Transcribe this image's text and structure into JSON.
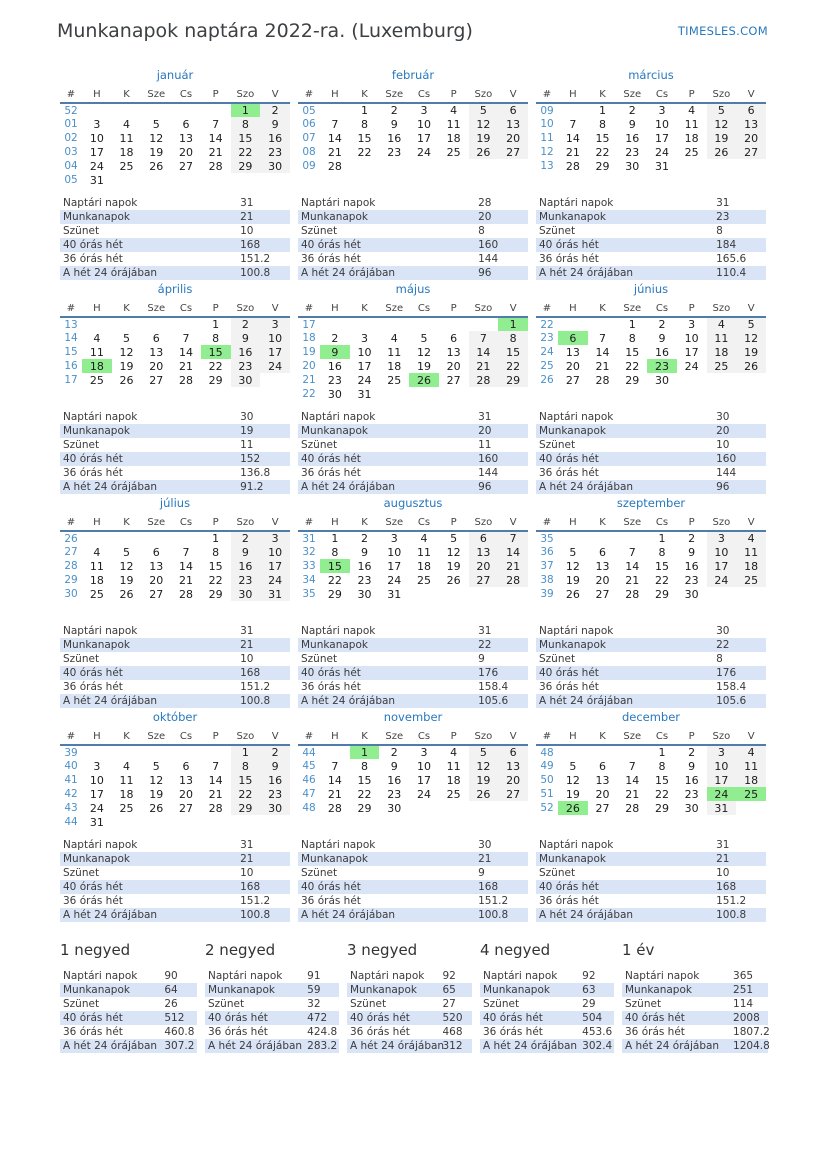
{
  "header": {
    "title": "Munkanapok naptára 2022-ra. (Luxemburg)",
    "brand": "TIMESLES.COM"
  },
  "weekday_headers": [
    "#",
    "H",
    "K",
    "Sze",
    "Cs",
    "P",
    "Szo",
    "V"
  ],
  "stat_labels": [
    "Naptári napok",
    "Munkanapok",
    "Szünet",
    "40 órás hét",
    "36 órás hét",
    "A hét 24 órájában"
  ],
  "colors": {
    "accent_blue": "#2878be",
    "week_number_blue": "#4a90c9",
    "holiday_green": "#90ee90",
    "weekend_gray": "#f2f2f2",
    "stats_row_blue": "#d9e4f7",
    "header_rule_blue": "#4f7cab"
  },
  "months": [
    {
      "name": "január",
      "holidays": [
        "1"
      ],
      "weeks": [
        {
          "num": "52",
          "days": [
            "",
            "",
            "",
            "",
            "",
            "1",
            "2"
          ]
        },
        {
          "num": "01",
          "days": [
            "3",
            "4",
            "5",
            "6",
            "7",
            "8",
            "9"
          ]
        },
        {
          "num": "02",
          "days": [
            "10",
            "11",
            "12",
            "13",
            "14",
            "15",
            "16"
          ]
        },
        {
          "num": "03",
          "days": [
            "17",
            "18",
            "19",
            "20",
            "21",
            "22",
            "23"
          ]
        },
        {
          "num": "04",
          "days": [
            "24",
            "25",
            "26",
            "27",
            "28",
            "29",
            "30"
          ]
        },
        {
          "num": "05",
          "days": [
            "31",
            "",
            "",
            "",
            "",
            "",
            ""
          ]
        }
      ],
      "stats": [
        "31",
        "21",
        "10",
        "168",
        "151.2",
        "100.8"
      ]
    },
    {
      "name": "február",
      "holidays": [],
      "weeks": [
        {
          "num": "05",
          "days": [
            "",
            "1",
            "2",
            "3",
            "4",
            "5",
            "6"
          ]
        },
        {
          "num": "06",
          "days": [
            "7",
            "8",
            "9",
            "10",
            "11",
            "12",
            "13"
          ]
        },
        {
          "num": "07",
          "days": [
            "14",
            "15",
            "16",
            "17",
            "18",
            "19",
            "20"
          ]
        },
        {
          "num": "08",
          "days": [
            "21",
            "22",
            "23",
            "24",
            "25",
            "26",
            "27"
          ]
        },
        {
          "num": "09",
          "days": [
            "28",
            "",
            "",
            "",
            "",
            "",
            ""
          ]
        }
      ],
      "stats": [
        "28",
        "20",
        "8",
        "160",
        "144",
        "96"
      ]
    },
    {
      "name": "március",
      "holidays": [],
      "weeks": [
        {
          "num": "09",
          "days": [
            "",
            "1",
            "2",
            "3",
            "4",
            "5",
            "6"
          ]
        },
        {
          "num": "10",
          "days": [
            "7",
            "8",
            "9",
            "10",
            "11",
            "12",
            "13"
          ]
        },
        {
          "num": "11",
          "days": [
            "14",
            "15",
            "16",
            "17",
            "18",
            "19",
            "20"
          ]
        },
        {
          "num": "12",
          "days": [
            "21",
            "22",
            "23",
            "24",
            "25",
            "26",
            "27"
          ]
        },
        {
          "num": "13",
          "days": [
            "28",
            "29",
            "30",
            "31",
            "",
            "",
            ""
          ]
        }
      ],
      "stats": [
        "31",
        "23",
        "8",
        "184",
        "165.6",
        "110.4"
      ]
    },
    {
      "name": "április",
      "holidays": [
        "15",
        "18"
      ],
      "weeks": [
        {
          "num": "13",
          "days": [
            "",
            "",
            "",
            "",
            "1",
            "2",
            "3"
          ]
        },
        {
          "num": "14",
          "days": [
            "4",
            "5",
            "6",
            "7",
            "8",
            "9",
            "10"
          ]
        },
        {
          "num": "15",
          "days": [
            "11",
            "12",
            "13",
            "14",
            "15",
            "16",
            "17"
          ]
        },
        {
          "num": "16",
          "days": [
            "18",
            "19",
            "20",
            "21",
            "22",
            "23",
            "24"
          ]
        },
        {
          "num": "17",
          "days": [
            "25",
            "26",
            "27",
            "28",
            "29",
            "30",
            ""
          ]
        }
      ],
      "stats": [
        "30",
        "19",
        "11",
        "152",
        "136.8",
        "91.2"
      ]
    },
    {
      "name": "május",
      "holidays": [
        "1",
        "9",
        "26"
      ],
      "weeks": [
        {
          "num": "17",
          "days": [
            "",
            "",
            "",
            "",
            "",
            "",
            "1"
          ]
        },
        {
          "num": "18",
          "days": [
            "2",
            "3",
            "4",
            "5",
            "6",
            "7",
            "8"
          ]
        },
        {
          "num": "19",
          "days": [
            "9",
            "10",
            "11",
            "12",
            "13",
            "14",
            "15"
          ]
        },
        {
          "num": "20",
          "days": [
            "16",
            "17",
            "18",
            "19",
            "20",
            "21",
            "22"
          ]
        },
        {
          "num": "21",
          "days": [
            "23",
            "24",
            "25",
            "26",
            "27",
            "28",
            "29"
          ]
        },
        {
          "num": "22",
          "days": [
            "30",
            "31",
            "",
            "",
            "",
            "",
            ""
          ]
        }
      ],
      "stats": [
        "31",
        "20",
        "11",
        "160",
        "144",
        "96"
      ]
    },
    {
      "name": "június",
      "holidays": [
        "6",
        "23"
      ],
      "weeks": [
        {
          "num": "22",
          "days": [
            "",
            "",
            "1",
            "2",
            "3",
            "4",
            "5"
          ]
        },
        {
          "num": "23",
          "days": [
            "6",
            "7",
            "8",
            "9",
            "10",
            "11",
            "12"
          ]
        },
        {
          "num": "24",
          "days": [
            "13",
            "14",
            "15",
            "16",
            "17",
            "18",
            "19"
          ]
        },
        {
          "num": "25",
          "days": [
            "20",
            "21",
            "22",
            "23",
            "24",
            "25",
            "26"
          ]
        },
        {
          "num": "26",
          "days": [
            "27",
            "28",
            "29",
            "30",
            "",
            "",
            ""
          ]
        }
      ],
      "stats": [
        "30",
        "20",
        "10",
        "160",
        "144",
        "96"
      ]
    },
    {
      "name": "július",
      "holidays": [],
      "weeks": [
        {
          "num": "26",
          "days": [
            "",
            "",
            "",
            "",
            "1",
            "2",
            "3"
          ]
        },
        {
          "num": "27",
          "days": [
            "4",
            "5",
            "6",
            "7",
            "8",
            "9",
            "10"
          ]
        },
        {
          "num": "28",
          "days": [
            "11",
            "12",
            "13",
            "14",
            "15",
            "16",
            "17"
          ]
        },
        {
          "num": "29",
          "days": [
            "18",
            "19",
            "20",
            "21",
            "22",
            "23",
            "24"
          ]
        },
        {
          "num": "30",
          "days": [
            "25",
            "26",
            "27",
            "28",
            "29",
            "30",
            "31"
          ]
        }
      ],
      "stats": [
        "31",
        "21",
        "10",
        "168",
        "151.2",
        "100.8"
      ]
    },
    {
      "name": "augusztus",
      "holidays": [
        "15"
      ],
      "weeks": [
        {
          "num": "31",
          "days": [
            "1",
            "2",
            "3",
            "4",
            "5",
            "6",
            "7"
          ]
        },
        {
          "num": "32",
          "days": [
            "8",
            "9",
            "10",
            "11",
            "12",
            "13",
            "14"
          ]
        },
        {
          "num": "33",
          "days": [
            "15",
            "16",
            "17",
            "18",
            "19",
            "20",
            "21"
          ]
        },
        {
          "num": "34",
          "days": [
            "22",
            "23",
            "24",
            "25",
            "26",
            "27",
            "28"
          ]
        },
        {
          "num": "35",
          "days": [
            "29",
            "30",
            "31",
            "",
            "",
            "",
            ""
          ]
        }
      ],
      "stats": [
        "31",
        "22",
        "9",
        "176",
        "158.4",
        "105.6"
      ]
    },
    {
      "name": "szeptember",
      "holidays": [],
      "weeks": [
        {
          "num": "35",
          "days": [
            "",
            "",
            "",
            "1",
            "2",
            "3",
            "4"
          ]
        },
        {
          "num": "36",
          "days": [
            "5",
            "6",
            "7",
            "8",
            "9",
            "10",
            "11"
          ]
        },
        {
          "num": "37",
          "days": [
            "12",
            "13",
            "14",
            "15",
            "16",
            "17",
            "18"
          ]
        },
        {
          "num": "38",
          "days": [
            "19",
            "20",
            "21",
            "22",
            "23",
            "24",
            "25"
          ]
        },
        {
          "num": "39",
          "days": [
            "26",
            "27",
            "28",
            "29",
            "30",
            "",
            ""
          ]
        }
      ],
      "stats": [
        "30",
        "22",
        "8",
        "176",
        "158.4",
        "105.6"
      ]
    },
    {
      "name": "október",
      "holidays": [],
      "weeks": [
        {
          "num": "39",
          "days": [
            "",
            "",
            "",
            "",
            "",
            "1",
            "2"
          ]
        },
        {
          "num": "40",
          "days": [
            "3",
            "4",
            "5",
            "6",
            "7",
            "8",
            "9"
          ]
        },
        {
          "num": "41",
          "days": [
            "10",
            "11",
            "12",
            "13",
            "14",
            "15",
            "16"
          ]
        },
        {
          "num": "42",
          "days": [
            "17",
            "18",
            "19",
            "20",
            "21",
            "22",
            "23"
          ]
        },
        {
          "num": "43",
          "days": [
            "24",
            "25",
            "26",
            "27",
            "28",
            "29",
            "30"
          ]
        },
        {
          "num": "44",
          "days": [
            "31",
            "",
            "",
            "",
            "",
            "",
            ""
          ]
        }
      ],
      "stats": [
        "31",
        "21",
        "10",
        "168",
        "151.2",
        "100.8"
      ]
    },
    {
      "name": "november",
      "holidays": [
        "1"
      ],
      "weeks": [
        {
          "num": "44",
          "days": [
            "",
            "1",
            "2",
            "3",
            "4",
            "5",
            "6"
          ]
        },
        {
          "num": "45",
          "days": [
            "7",
            "8",
            "9",
            "10",
            "11",
            "12",
            "13"
          ]
        },
        {
          "num": "46",
          "days": [
            "14",
            "15",
            "16",
            "17",
            "18",
            "19",
            "20"
          ]
        },
        {
          "num": "47",
          "days": [
            "21",
            "22",
            "23",
            "24",
            "25",
            "26",
            "27"
          ]
        },
        {
          "num": "48",
          "days": [
            "28",
            "29",
            "30",
            "",
            "",
            "",
            ""
          ]
        }
      ],
      "stats": [
        "30",
        "21",
        "9",
        "168",
        "151.2",
        "100.8"
      ]
    },
    {
      "name": "december",
      "holidays": [
        "24",
        "25",
        "26"
      ],
      "weeks": [
        {
          "num": "48",
          "days": [
            "",
            "",
            "",
            "1",
            "2",
            "3",
            "4"
          ]
        },
        {
          "num": "49",
          "days": [
            "5",
            "6",
            "7",
            "8",
            "9",
            "10",
            "11"
          ]
        },
        {
          "num": "50",
          "days": [
            "12",
            "13",
            "14",
            "15",
            "16",
            "17",
            "18"
          ]
        },
        {
          "num": "51",
          "days": [
            "19",
            "20",
            "21",
            "22",
            "23",
            "24",
            "25"
          ]
        },
        {
          "num": "52",
          "days": [
            "26",
            "27",
            "28",
            "29",
            "30",
            "31",
            ""
          ]
        }
      ],
      "stats": [
        "31",
        "21",
        "10",
        "168",
        "151.2",
        "100.8"
      ]
    }
  ],
  "summaries": [
    {
      "title": "1 negyed",
      "stats": [
        "90",
        "64",
        "26",
        "512",
        "460.8",
        "307.2"
      ]
    },
    {
      "title": "2 negyed",
      "stats": [
        "91",
        "59",
        "32",
        "472",
        "424.8",
        "283.2"
      ]
    },
    {
      "title": "3 negyed",
      "stats": [
        "92",
        "65",
        "27",
        "520",
        "468",
        "312"
      ]
    },
    {
      "title": "4 negyed",
      "stats": [
        "92",
        "63",
        "29",
        "504",
        "453.6",
        "302.4"
      ]
    },
    {
      "title": "1 év",
      "stats": [
        "365",
        "251",
        "114",
        "2008",
        "1807.2",
        "1204.8"
      ]
    }
  ]
}
